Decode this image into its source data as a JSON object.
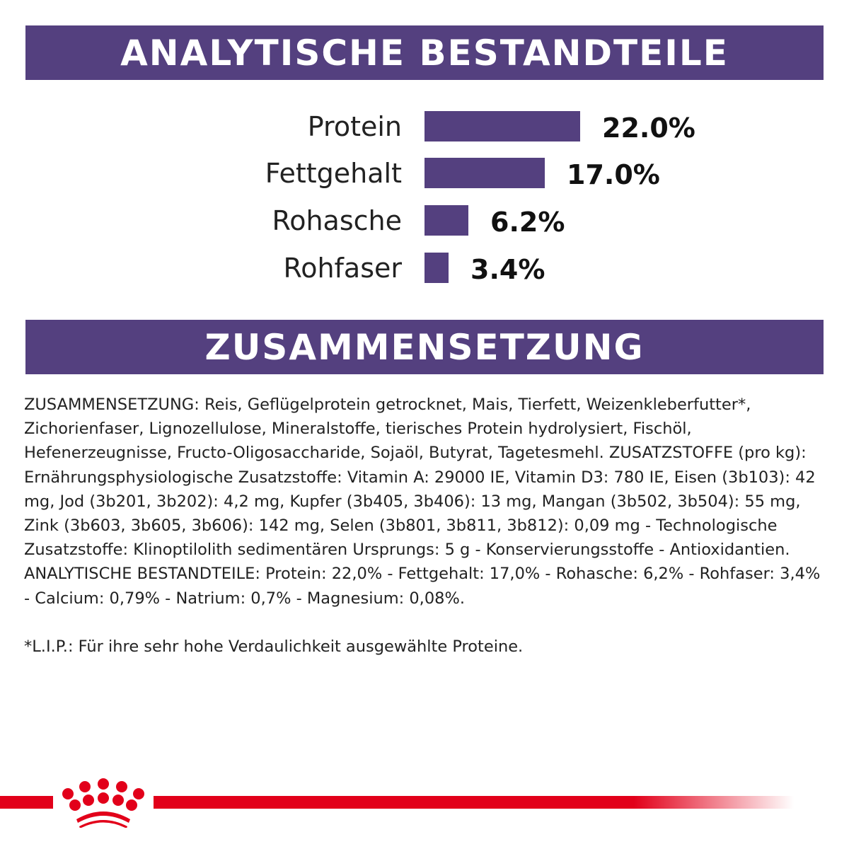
{
  "header1": "ANALYTISCHE BESTANDTEILE",
  "header2": "ZUSAMMENSETZUNG",
  "chart_data": {
    "type": "bar",
    "orientation": "horizontal",
    "categories": [
      "Protein",
      "Fettgehalt",
      "Rohasche",
      "Rohfaser"
    ],
    "values": [
      22.0,
      17.0,
      6.2,
      3.4
    ],
    "value_labels": [
      "22.0%",
      "17.0%",
      "6.2%",
      "3.4%"
    ],
    "bar_color": "#54407f",
    "grid": false
  },
  "composition_text": "ZUSAMMENSETZUNG: Reis, Geflügelprotein getrocknet, Mais, Tierfett, Weizenkleberfut­ter*, Zichorienfaser, Lignozellulose, Mineralstoffe, tierisches Protein hydrolysiert, Fischöl, Hefenerzeugnisse, Fructo-Oligosaccharide, Sojaöl, Butyrat, Tagetesmehl. ZUSATZSTOFFE (pro kg): Ernährungsphysiologische Zusatzstoffe: Vitamin A: 29000 IE, Vitamin D3: 780 IE, Eisen (3b103): 42 mg, Jod (3b201, 3b202): 4,2 mg, Kupfer (3b405, 3b406): 13 mg, Mangan (3b502, 3b504): 55 mg, Zink (3b603, 3b605, 3b606): 142 mg, Selen (3b801, 3b811, 3b812): 0,09 mg - Technologische Zusatzstoffe: Klinoptilolith sedimentären Ursprungs: 5 g - Konservierungsstoffe - Antioxidantien. ANALYTISCHE BESTANDTEILE: Protein: 22,0% - Fettgehalt: 17,0% - Rohasche: 6,2% - Rohfaser: 3,4% - Calcium: 0,79% - Natrium: 0,7% - Magnesium: 0,08%.",
  "footnote": "*L.I.P.: Für ihre sehr hohe Verdaulichkeit ausgewählte Proteine.",
  "logo": {
    "name": "royal-canin-crown-logo",
    "color": "#e2001a"
  }
}
